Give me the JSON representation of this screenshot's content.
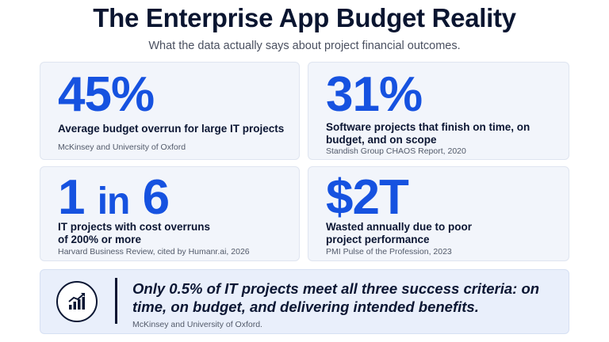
{
  "header": {
    "title": "The Enterprise App Budget Reality",
    "subtitle": "What the data actually says about project financial outcomes."
  },
  "stats": [
    {
      "value": "45%",
      "description": "Average budget overrun for large IT projects",
      "source": "McKinsey and University of Oxford"
    },
    {
      "value": "31%",
      "description": "Software projects that finish on time, on budget, and on scope",
      "source": "Standish Group CHAOS Report, 2020"
    },
    {
      "value_a": "1",
      "value_mid": "in",
      "value_b": "6",
      "description": "IT projects with cost overruns of 200% or more",
      "source": "Harvard Business Review, cited by Humanr.ai, 2026"
    },
    {
      "value": "$2T",
      "description": "Wasted annually due to poor project performance",
      "source": "PMI Pulse of the Profession, 2023"
    }
  ],
  "callout": {
    "icon": "growth-chart-icon",
    "text": "Only 0.5% of IT projects meet all three success criteria: on time, on budget, and delivering intended benefits.",
    "source": "McKinsey and University of Oxford."
  },
  "colors": {
    "accent": "#1652e0",
    "text": "#0b1633",
    "card_bg": "#f2f5fb"
  }
}
